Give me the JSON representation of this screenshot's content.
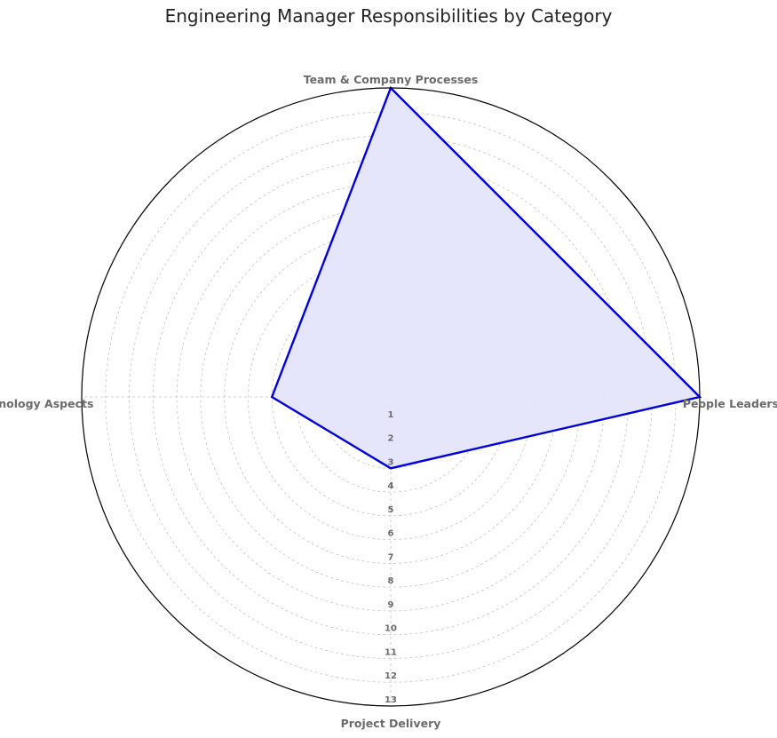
{
  "chart_data": {
    "type": "radar",
    "title": "Engineering Manager Responsibilities by Category",
    "categories": [
      "People Leadership",
      "Team & Company Processes",
      "Technology Aspects",
      "Project Delivery"
    ],
    "series": [
      {
        "values": [
          13,
          13,
          5,
          3
        ]
      }
    ],
    "r_ticks": [
      1,
      2,
      3,
      4,
      5,
      6,
      7,
      8,
      9,
      10,
      11,
      12,
      13
    ],
    "rlim": [
      0,
      13
    ],
    "grid": true,
    "colors": {
      "line": "#0000dd",
      "fill": "#e4e4fb",
      "grid": "#c4c4c4",
      "frame": "#000000"
    }
  }
}
